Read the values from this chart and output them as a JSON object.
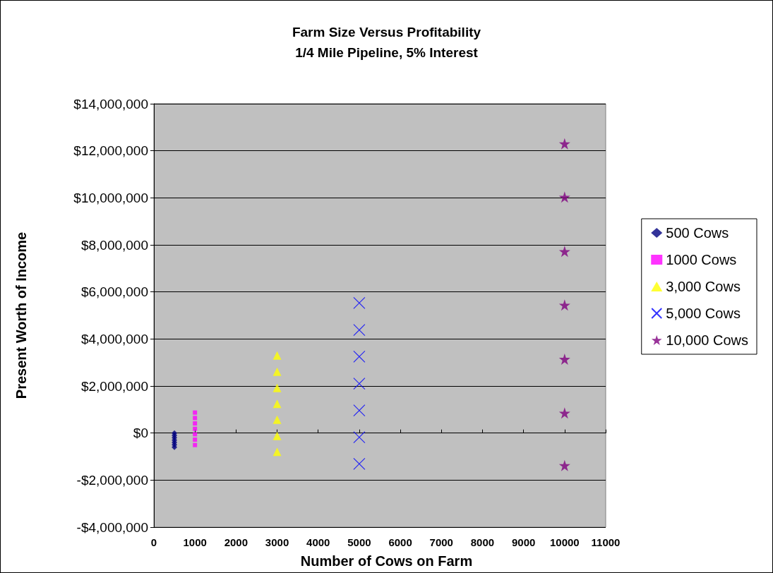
{
  "chart_data": {
    "type": "scatter",
    "title": "Farm Size Versus Profitability",
    "subtitle": "1/4 Mile Pipeline, 5% Interest",
    "xlabel": "Number of Cows on Farm",
    "ylabel": "Present Worth of Income",
    "series": [
      {
        "name": "500 Cows",
        "color": "#000080",
        "marker": "diamond",
        "x": [
          500,
          500,
          500,
          500,
          500,
          500,
          500
        ],
        "values": [
          0,
          -100000,
          -200000,
          -300000,
          -400000,
          -500000,
          -600000
        ]
      },
      {
        "name": "1000 Cows",
        "color": "#ff00ff",
        "marker": "square",
        "x": [
          1000,
          1000,
          1000,
          1000,
          1000,
          1000,
          1000
        ],
        "values": [
          870000,
          640000,
          410000,
          180000,
          -50000,
          -280000,
          -510000
        ]
      },
      {
        "name": "3,000 Cows",
        "color": "#ffff00",
        "marker": "triangle",
        "x": [
          3000,
          3000,
          3000,
          3000,
          3000,
          3000,
          3000
        ],
        "values": [
          3300000,
          2610000,
          1920000,
          1240000,
          570000,
          -120000,
          -800000
        ]
      },
      {
        "name": "5,000 Cows",
        "color": "#0000ff",
        "marker": "cross",
        "x": [
          5000,
          5000,
          5000,
          5000,
          5000,
          5000,
          5000
        ],
        "values": [
          5530000,
          4380000,
          3250000,
          2100000,
          960000,
          -180000,
          -1310000
        ]
      },
      {
        "name": "10,000 Cows",
        "color": "#800080",
        "marker": "star",
        "x": [
          10000,
          10000,
          10000,
          10000,
          10000,
          10000,
          10000
        ],
        "values": [
          12300000,
          10030000,
          7720000,
          5440000,
          3140000,
          850000,
          -1380000
        ]
      }
    ],
    "xlim": [
      0,
      11000
    ],
    "xticks": [
      0,
      1000,
      2000,
      3000,
      4000,
      5000,
      6000,
      7000,
      8000,
      9000,
      10000,
      11000
    ],
    "ylim": [
      -4000000,
      14000000
    ],
    "yticks": [
      {
        "value": -4000000,
        "label": "-$4,000,000"
      },
      {
        "value": -2000000,
        "label": "-$2,000,000"
      },
      {
        "value": 0,
        "label": "$0"
      },
      {
        "value": 2000000,
        "label": "$2,000,000"
      },
      {
        "value": 4000000,
        "label": "$4,000,000"
      },
      {
        "value": 6000000,
        "label": "$6,000,000"
      },
      {
        "value": 8000000,
        "label": "$8,000,000"
      },
      {
        "value": 10000000,
        "label": "$10,000,000"
      },
      {
        "value": 12000000,
        "label": "$12,000,000"
      },
      {
        "value": 14000000,
        "label": "$14,000,000"
      }
    ],
    "grid": "y",
    "legend": "right"
  }
}
